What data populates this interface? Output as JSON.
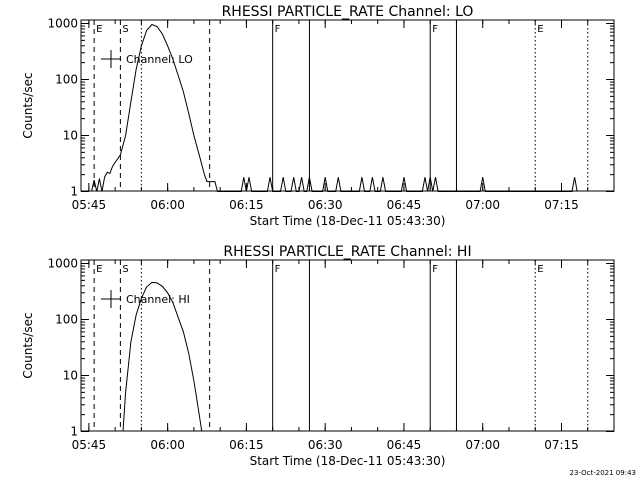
{
  "footer": {
    "timestamp": "23-Oct-2021 09:43"
  },
  "chart_data": [
    {
      "type": "line",
      "title": "RHESSI PARTICLE_RATE Channel: LO",
      "xlabel": "Start Time (18-Dec-11 05:43:30)",
      "ylabel": "Counts/sec",
      "y_scale": "log",
      "x_ticks": [
        "05:45",
        "06:00",
        "06:15",
        "06:30",
        "06:45",
        "07:00",
        "07:15"
      ],
      "y_ticks": [
        "1",
        "10",
        "100",
        "1000"
      ],
      "legend": {
        "label": "Channel: LO",
        "position": "top-left"
      },
      "markers": [
        {
          "time": "05:46",
          "label": "E",
          "style": "dashed"
        },
        {
          "time": "05:51",
          "label": "S",
          "style": "dashed"
        },
        {
          "time": "05:55",
          "label": "",
          "style": "dotted"
        },
        {
          "time": "06:08",
          "label": "",
          "style": "dashed"
        },
        {
          "time": "06:20",
          "label": "F",
          "style": "solid"
        },
        {
          "time": "06:27",
          "label": "",
          "style": "solid"
        },
        {
          "time": "06:50",
          "label": "F",
          "style": "solid"
        },
        {
          "time": "06:55",
          "label": "",
          "style": "solid"
        },
        {
          "time": "07:10",
          "label": "E",
          "style": "dotted"
        },
        {
          "time": "07:20",
          "label": "",
          "style": "dotted"
        }
      ],
      "series": [
        {
          "points": [
            [
              "05:45:30",
              1
            ],
            [
              "05:46:00",
              1.6
            ],
            [
              "05:46:30",
              1
            ],
            [
              "05:47:00",
              1.7
            ],
            [
              "05:47:30",
              1
            ],
            [
              "05:48:00",
              1.8
            ],
            [
              "05:48:30",
              2.2
            ],
            [
              "05:49:00",
              2.1
            ],
            [
              "05:49:30",
              2.8
            ],
            [
              "05:50:00",
              3.3
            ],
            [
              "05:51:00",
              4.5
            ],
            [
              "05:52:00",
              10
            ],
            [
              "05:53:00",
              40
            ],
            [
              "05:54:00",
              150
            ],
            [
              "05:55:00",
              400
            ],
            [
              "05:56:00",
              750
            ],
            [
              "05:57:00",
              960
            ],
            [
              "05:58:00",
              880
            ],
            [
              "05:59:00",
              650
            ],
            [
              "06:00:00",
              400
            ],
            [
              "06:01:00",
              230
            ],
            [
              "06:02:00",
              120
            ],
            [
              "06:03:00",
              60
            ],
            [
              "06:04:00",
              25
            ],
            [
              "06:05:00",
              10
            ],
            [
              "06:06:00",
              4.5
            ],
            [
              "06:07:00",
              2
            ],
            [
              "06:07:30",
              1.5
            ],
            [
              "06:08:00",
              1.5
            ],
            [
              "06:09:00",
              1.5
            ],
            [
              "06:09:30",
              1
            ],
            [
              "06:14:00",
              1
            ],
            [
              "06:14:30",
              1.8
            ],
            [
              "06:15:00",
              1
            ],
            [
              "06:15:30",
              1.8
            ],
            [
              "06:16:00",
              1
            ],
            [
              "06:19:00",
              1
            ],
            [
              "06:19:30",
              1.8
            ],
            [
              "06:20:00",
              1
            ],
            [
              "06:21:30",
              1
            ],
            [
              "06:22:00",
              1.8
            ],
            [
              "06:22:30",
              1
            ],
            [
              "06:23:30",
              1
            ],
            [
              "06:24:00",
              1.8
            ],
            [
              "06:24:30",
              1
            ],
            [
              "06:25:00",
              1
            ],
            [
              "06:25:30",
              1.8
            ],
            [
              "06:26:00",
              1
            ],
            [
              "06:26:30",
              1
            ],
            [
              "06:27:00",
              1.8
            ],
            [
              "06:27:30",
              1
            ],
            [
              "06:29:30",
              1
            ],
            [
              "06:30:00",
              1.8
            ],
            [
              "06:30:30",
              1
            ],
            [
              "06:32:00",
              1
            ],
            [
              "06:32:30",
              1.8
            ],
            [
              "06:33:00",
              1
            ],
            [
              "06:36:30",
              1
            ],
            [
              "06:37:00",
              1.8
            ],
            [
              "06:37:30",
              1
            ],
            [
              "06:38:30",
              1
            ],
            [
              "06:39:00",
              1.8
            ],
            [
              "06:39:30",
              1
            ],
            [
              "06:40:30",
              1
            ],
            [
              "06:41:00",
              1.8
            ],
            [
              "06:41:30",
              1
            ],
            [
              "06:44:30",
              1
            ],
            [
              "06:45:00",
              1.8
            ],
            [
              "06:45:30",
              1
            ],
            [
              "06:48:30",
              1
            ],
            [
              "06:49:00",
              1.8
            ],
            [
              "06:49:30",
              1
            ],
            [
              "06:50:00",
              1.8
            ],
            [
              "06:50:30",
              1
            ],
            [
              "06:51:00",
              1.8
            ],
            [
              "06:51:30",
              1
            ],
            [
              "06:59:30",
              1
            ],
            [
              "07:00:00",
              1.8
            ],
            [
              "07:00:30",
              1
            ],
            [
              "07:17:00",
              1
            ],
            [
              "07:17:30",
              1.8
            ],
            [
              "07:18:00",
              1
            ]
          ]
        }
      ]
    },
    {
      "type": "line",
      "title": "RHESSI PARTICLE_RATE Channel: HI",
      "xlabel": "Start Time (18-Dec-11 05:43:30)",
      "ylabel": "Counts/sec",
      "y_scale": "log",
      "x_ticks": [
        "05:45",
        "06:00",
        "06:15",
        "06:30",
        "06:45",
        "07:00",
        "07:15"
      ],
      "y_ticks": [
        "1",
        "10",
        "100",
        "1000"
      ],
      "legend": {
        "label": "Channel: HI",
        "position": "top-left"
      },
      "markers": [
        {
          "time": "05:46",
          "label": "E",
          "style": "dashed"
        },
        {
          "time": "05:51",
          "label": "S",
          "style": "dashed"
        },
        {
          "time": "05:55",
          "label": "",
          "style": "dotted"
        },
        {
          "time": "06:08",
          "label": "",
          "style": "dashed"
        },
        {
          "time": "06:20",
          "label": "F",
          "style": "solid"
        },
        {
          "time": "06:27",
          "label": "",
          "style": "solid"
        },
        {
          "time": "06:50",
          "label": "F",
          "style": "solid"
        },
        {
          "time": "06:55",
          "label": "",
          "style": "solid"
        },
        {
          "time": "07:10",
          "label": "E",
          "style": "dotted"
        },
        {
          "time": "07:20",
          "label": "",
          "style": "dotted"
        }
      ],
      "series": [
        {
          "points": [
            [
              "05:51:30",
              1
            ],
            [
              "05:52:00",
              5
            ],
            [
              "05:53:00",
              40
            ],
            [
              "05:54:00",
              120
            ],
            [
              "05:55:00",
              240
            ],
            [
              "05:56:00",
              380
            ],
            [
              "05:57:00",
              460
            ],
            [
              "05:58:00",
              450
            ],
            [
              "05:59:00",
              390
            ],
            [
              "06:00:00",
              300
            ],
            [
              "06:01:00",
              200
            ],
            [
              "06:02:00",
              110
            ],
            [
              "06:03:00",
              60
            ],
            [
              "06:04:00",
              25
            ],
            [
              "06:05:00",
              8
            ],
            [
              "06:06:00",
              2
            ],
            [
              "06:06:30",
              1
            ]
          ]
        }
      ]
    }
  ]
}
